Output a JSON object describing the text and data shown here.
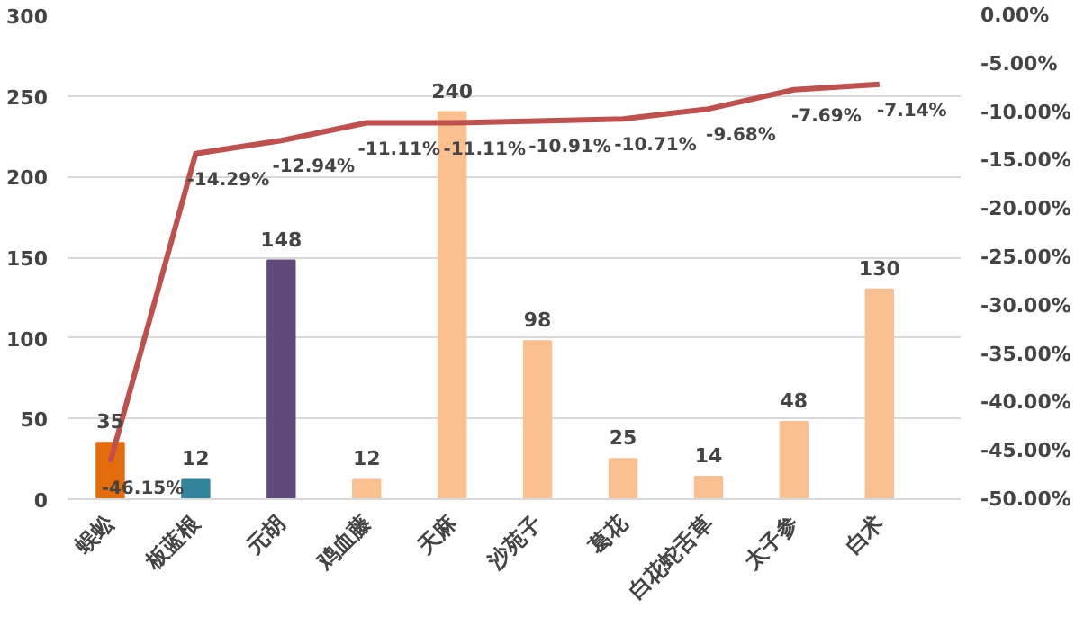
{
  "chart_data": {
    "type": "bar",
    "categories": [
      "蜈蚣",
      "板蓝根",
      "元胡",
      "鸡血藤",
      "天麻",
      "沙苑子",
      "葛花",
      "白花蛇舌草",
      "太子参",
      "白术"
    ],
    "series": [
      {
        "colors": [
          "#e46c0a",
          "#31849b",
          "#604a7b",
          "#fac090",
          "#fac090",
          "#fac090",
          "#fac090",
          "#fac090",
          "#fac090",
          "#fac090"
        ],
        "values": [
          35,
          12,
          148,
          12,
          240,
          98,
          25,
          14,
          48,
          130
        ],
        "value_labels": [
          "35",
          "12",
          "148",
          "12",
          "240",
          "98",
          "25",
          "14",
          "48",
          "130"
        ]
      },
      {
        "type": "line",
        "axis": "y2",
        "color": "#c0504d",
        "values": [
          -46.15,
          -14.29,
          -12.94,
          -11.11,
          -11.11,
          -10.91,
          -10.71,
          -9.68,
          -7.69,
          -7.14
        ],
        "value_labels": [
          "-46.15%",
          "-14.29%",
          "-12.94%",
          "-11.11%",
          "-11.11%",
          "-10.91%",
          "-10.71%",
          "-9.68%",
          "-7.69%",
          "-7.14%"
        ]
      }
    ],
    "ylim": [
      0,
      300
    ],
    "yticks": [
      0,
      50,
      100,
      150,
      200,
      250,
      300
    ],
    "y2lim": [
      -50,
      0
    ],
    "y2ticks": [
      {
        "value": -50,
        "label": "-50.00%"
      },
      {
        "value": -45,
        "label": "-45.00%"
      },
      {
        "value": -40,
        "label": "-40.00%"
      },
      {
        "value": -35,
        "label": "-35.00%"
      },
      {
        "value": -30,
        "label": "-30.00%"
      },
      {
        "value": -25,
        "label": "-25.00%"
      },
      {
        "value": -20,
        "label": "-20.00%"
      },
      {
        "value": -15,
        "label": "-15.00%"
      },
      {
        "value": -10,
        "label": "-10.00%"
      },
      {
        "value": -5,
        "label": "-5.00%"
      },
      {
        "value": 0,
        "label": "0.00%"
      }
    ],
    "grid": "y"
  }
}
